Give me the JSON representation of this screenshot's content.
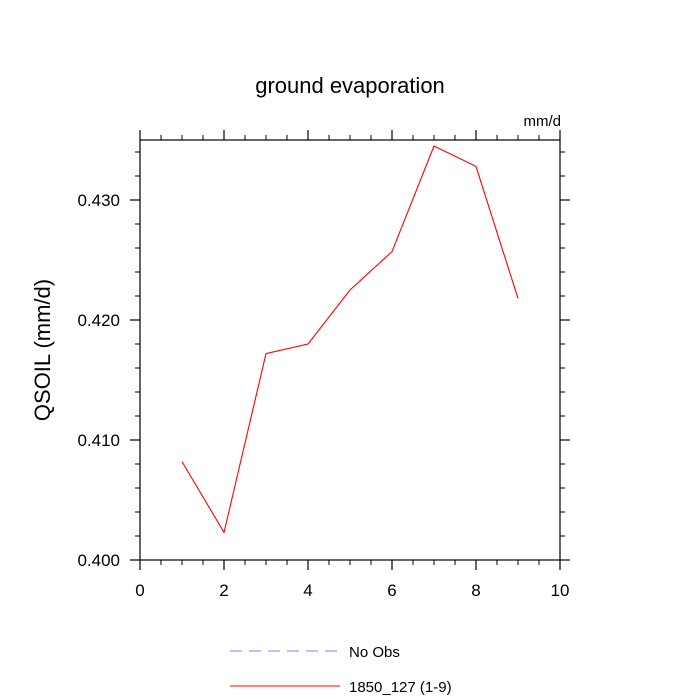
{
  "chart_data": {
    "type": "line",
    "title": "ground evaporation",
    "units_label": "mm/d",
    "xlabel": "",
    "ylabel": "QSOIL  (mm/d)",
    "xlim": [
      0,
      10
    ],
    "ylim": [
      0.4,
      0.435
    ],
    "x_ticks": [
      0,
      2,
      4,
      6,
      8,
      10
    ],
    "x_tick_labels": [
      "0",
      "2",
      "4",
      "6",
      "8",
      "10"
    ],
    "y_ticks": [
      0.4,
      0.41,
      0.42,
      0.43
    ],
    "y_tick_labels": [
      "0.400",
      "0.410",
      "0.420",
      "0.430"
    ],
    "grid": false,
    "series": [
      {
        "name": "No Obs",
        "color": "#8080ff",
        "dash": true,
        "x": [],
        "values": []
      },
      {
        "name": "1850_127 (1-9)",
        "color": "#ff0000",
        "dash": false,
        "x": [
          1,
          2,
          3,
          4,
          5,
          6,
          7,
          8,
          9
        ],
        "values": [
          0.4082,
          0.4023,
          0.4172,
          0.418,
          0.4225,
          0.4257,
          0.4345,
          0.4328,
          0.4218
        ]
      }
    ],
    "legend": {
      "position": "bottom",
      "entries": [
        "No Obs",
        "1850_127 (1-9)"
      ]
    }
  }
}
